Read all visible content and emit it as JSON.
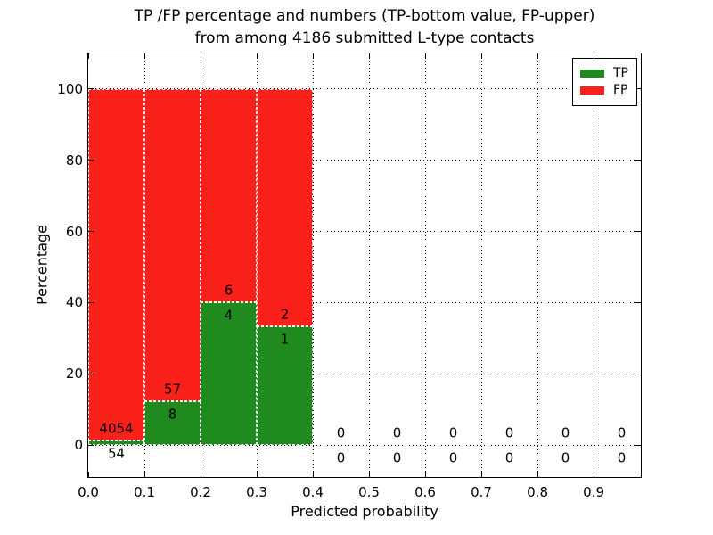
{
  "figure": {
    "title_line1": "TP /FP percentage and numbers (TP-bottom value, FP-upper)",
    "title_line2": "from among 4186 submitted L-type contacts"
  },
  "chart_data": {
    "type": "bar",
    "subtype": "stacked-percentage-histogram",
    "title": "TP /FP percentage and numbers (TP-bottom value, FP-upper) from among 4186 submitted L-type contacts",
    "xlabel": "Predicted probability",
    "ylabel": "Percentage",
    "total_submitted_contacts": 4186,
    "grid": true,
    "legend_position": "upper right",
    "legend": {
      "entries": [
        {
          "label": "TP",
          "color": "#1f8b1f"
        },
        {
          "label": "FP",
          "color": "#fa211a"
        }
      ]
    },
    "xlim": [
      0.0,
      0.984
    ],
    "ylim": [
      -9,
      110
    ],
    "xticks": {
      "values": [
        0.0,
        0.1,
        0.2,
        0.3,
        0.4,
        0.5,
        0.6,
        0.7,
        0.8,
        0.9
      ],
      "labels": [
        "0.0",
        "0.1",
        "0.2",
        "0.3",
        "0.4",
        "0.5",
        "0.6",
        "0.7",
        "0.8",
        "0.9"
      ]
    },
    "yticks": {
      "values": [
        0,
        20,
        40,
        60,
        80,
        100
      ],
      "labels": [
        "0",
        "20",
        "40",
        "60",
        "80",
        "100"
      ]
    },
    "bins": [
      {
        "range": [
          0.0,
          0.1
        ],
        "tp_count": 54,
        "fp_count": 4054,
        "tp_pct": 1.31,
        "fp_pct": 98.69
      },
      {
        "range": [
          0.1,
          0.2
        ],
        "tp_count": 8,
        "fp_count": 57,
        "tp_pct": 12.31,
        "fp_pct": 87.69
      },
      {
        "range": [
          0.2,
          0.3
        ],
        "tp_count": 4,
        "fp_count": 6,
        "tp_pct": 40.0,
        "fp_pct": 60.0
      },
      {
        "range": [
          0.3,
          0.4
        ],
        "tp_count": 1,
        "fp_count": 2,
        "tp_pct": 33.33,
        "fp_pct": 66.67
      },
      {
        "range": [
          0.4,
          0.5
        ],
        "tp_count": 0,
        "fp_count": 0,
        "tp_pct": 0,
        "fp_pct": 0
      },
      {
        "range": [
          0.5,
          0.6
        ],
        "tp_count": 0,
        "fp_count": 0,
        "tp_pct": 0,
        "fp_pct": 0
      },
      {
        "range": [
          0.6,
          0.7
        ],
        "tp_count": 0,
        "fp_count": 0,
        "tp_pct": 0,
        "fp_pct": 0
      },
      {
        "range": [
          0.7,
          0.8
        ],
        "tp_count": 0,
        "fp_count": 0,
        "tp_pct": 0,
        "fp_pct": 0
      },
      {
        "range": [
          0.8,
          0.9
        ],
        "tp_count": 0,
        "fp_count": 0,
        "tp_pct": 0,
        "fp_pct": 0
      },
      {
        "range": [
          0.9,
          1.0
        ],
        "tp_count": 0,
        "fp_count": 0,
        "tp_pct": 0,
        "fp_pct": 0
      }
    ]
  },
  "colors": {
    "tp_green": "#1f8b1f",
    "fp_red": "#fa211a",
    "grid_black": "#000000",
    "background_white": "#ffffff"
  }
}
